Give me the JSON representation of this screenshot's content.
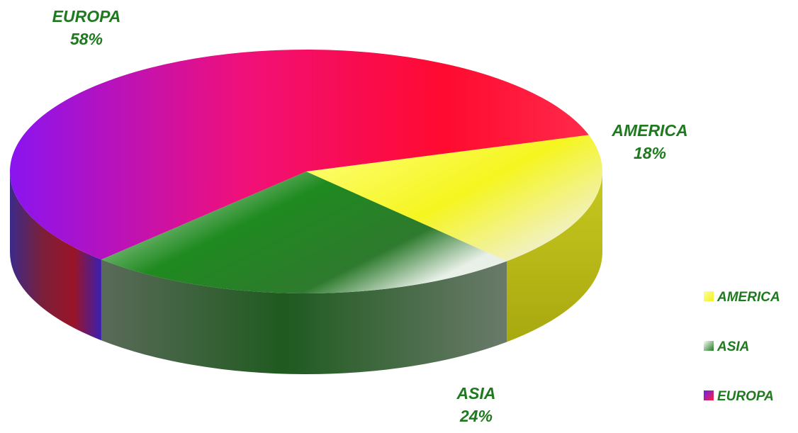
{
  "chart_data": {
    "type": "pie",
    "style": "3d",
    "slices": [
      {
        "label": "AMERICA",
        "value": 18,
        "percent_label": "18%",
        "color": "#f7f73a"
      },
      {
        "label": "ASIA",
        "value": 24,
        "percent_label": "24%",
        "color": "#1f7a1f"
      },
      {
        "label": "EUROPA",
        "value": 58,
        "percent_label": "58%",
        "color": "#ff1f3d"
      }
    ],
    "label_color": "#1f7a1f",
    "legend": {
      "position": "right",
      "entries": [
        "AMERICA",
        "ASIA",
        "EUROPA"
      ]
    }
  }
}
